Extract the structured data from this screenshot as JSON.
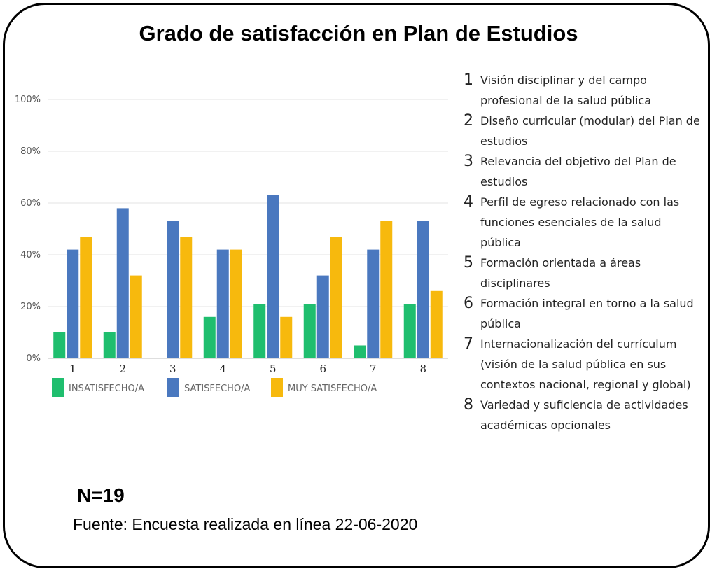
{
  "title": "Grado de satisfacción en Plan de Estudios",
  "chart_data": {
    "type": "bar",
    "categories": [
      "1",
      "2",
      "3",
      "4",
      "5",
      "6",
      "7",
      "8"
    ],
    "series": [
      {
        "name": "INSATISFECHO/A",
        "color": "#1fbe6e",
        "values": [
          10,
          10,
          0,
          16,
          21,
          21,
          5,
          21
        ]
      },
      {
        "name": "SATISFECHO/A",
        "color": "#4a78bf",
        "values": [
          42,
          58,
          53,
          42,
          63,
          32,
          42,
          53
        ]
      },
      {
        "name": "MUY SATISFECHO/A",
        "color": "#f7b90d",
        "values": [
          47,
          32,
          47,
          42,
          16,
          47,
          53,
          26
        ]
      }
    ],
    "yticks": [
      "0%",
      "20%",
      "40%",
      "60%",
      "80%",
      "100%"
    ],
    "ylim": [
      0,
      100
    ],
    "grid": true,
    "legend_position": "bottom"
  },
  "category_legend": [
    {
      "num": "1",
      "text": "Visión disciplinar y del campo profesional de la salud pública"
    },
    {
      "num": "2",
      "text": "Diseño curricular (modular) del Plan de estudios"
    },
    {
      "num": "3",
      "text": "Relevancia del objetivo del Plan de estudios"
    },
    {
      "num": "4",
      "text": "Perfil de egreso relacionado con las funciones esenciales de la salud pública"
    },
    {
      "num": "5",
      "text": "Formación orientada a áreas disciplinares"
    },
    {
      "num": "6",
      "text": "Formación integral en torno a la salud pública"
    },
    {
      "num": "7",
      "text": "Internacionalización del currículum (visión de la salud pública en sus contextos nacional, regional y global)"
    },
    {
      "num": "8",
      "text": "Variedad y suficiencia de actividades académicas opcionales"
    }
  ],
  "sample": "N=19",
  "source": "Fuente: Encuesta realizada en línea 22-06-2020"
}
